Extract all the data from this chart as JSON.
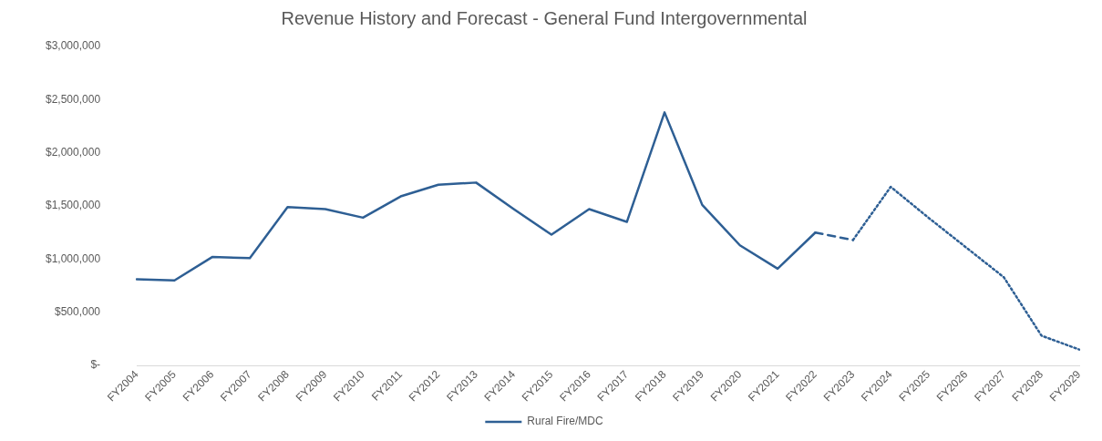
{
  "chart_data": {
    "type": "line",
    "title": "Revenue History and Forecast - General Fund Intergovernmental",
    "categories": [
      "FY2004",
      "FY2005",
      "FY2006",
      "FY2007",
      "FY2008",
      "FY2009",
      "FY2010",
      "FY2011",
      "FY2012",
      "FY2013",
      "FY2014",
      "FY2015",
      "FY2016",
      "FY2017",
      "FY2018",
      "FY2019",
      "FY2020",
      "FY2021",
      "FY2022",
      "FY2023",
      "FY2024",
      "FY2025",
      "FY2026",
      "FY2027",
      "FY2028",
      "FY2029"
    ],
    "series": [
      {
        "name": "Rural Fire/MDC",
        "color": "#2e5f94",
        "line_style": "solid",
        "values": [
          810000,
          800000,
          1020000,
          1010000,
          1490000,
          1470000,
          1390000,
          1590000,
          1700000,
          1720000,
          1470000,
          1230000,
          1470000,
          1350000,
          2380000,
          1510000,
          1130000,
          910000,
          1250000,
          null,
          null,
          null,
          null,
          null,
          null,
          null
        ]
      },
      {
        "color": "#2e5f94",
        "line_style": "dashed",
        "values": [
          null,
          null,
          null,
          null,
          null,
          null,
          null,
          null,
          null,
          null,
          null,
          null,
          null,
          null,
          null,
          null,
          null,
          null,
          1250000,
          1180000,
          null,
          null,
          null,
          null,
          null,
          null
        ]
      },
      {
        "color": "#2e5f94",
        "line_style": "dotted",
        "values": [
          null,
          null,
          null,
          null,
          null,
          null,
          null,
          null,
          null,
          null,
          null,
          null,
          null,
          null,
          null,
          null,
          null,
          null,
          null,
          1180000,
          1680000,
          1390000,
          1110000,
          830000,
          280000,
          150000
        ]
      }
    ],
    "ylim": [
      0,
      3000000
    ],
    "yticks": [
      {
        "value": 0,
        "label": "$-"
      },
      {
        "value": 500000,
        "label": "$500,000"
      },
      {
        "value": 1000000,
        "label": "$1,000,000"
      },
      {
        "value": 1500000,
        "label": "$1,500,000"
      },
      {
        "value": 2000000,
        "label": "$2,000,000"
      },
      {
        "value": 2500000,
        "label": "$2,500,000"
      },
      {
        "value": 3000000,
        "label": "$3,000,000"
      }
    ],
    "grid": false,
    "legend": "bottom",
    "marker": "none"
  }
}
